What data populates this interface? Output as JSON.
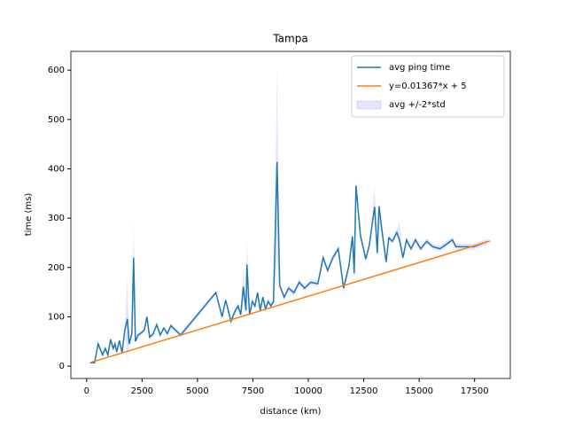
{
  "chart_data": {
    "type": "line",
    "title": "Tampa",
    "xlabel": "distance (km)",
    "ylabel": "time (ms)",
    "xlim": [
      -710,
      19110
    ],
    "ylim": [
      -25,
      638
    ],
    "xticks": [
      0,
      2500,
      5000,
      7500,
      10000,
      12500,
      15000,
      17500
    ],
    "yticks": [
      0,
      100,
      200,
      300,
      400,
      500,
      600
    ],
    "legend": "upper right",
    "series": [
      {
        "name": "avg ping time",
        "color": "#1f77b4",
        "x": [
          160,
          360,
          520,
          720,
          840,
          960,
          1080,
          1200,
          1280,
          1360,
          1480,
          1600,
          1720,
          1840,
          1920,
          2040,
          2120,
          2200,
          2320,
          2480,
          2600,
          2720,
          2840,
          3000,
          3160,
          3320,
          3480,
          3640,
          3800,
          3960,
          4240,
          5830,
          6110,
          6270,
          6510,
          6670,
          6830,
          6950,
          7070,
          7190,
          7230,
          7350,
          7470,
          7590,
          7710,
          7830,
          7950,
          8070,
          8190,
          8310,
          8430,
          8590,
          8710,
          8910,
          9110,
          9350,
          9590,
          9830,
          10110,
          10430,
          10670,
          10870,
          11110,
          11350,
          11590,
          11830,
          11990,
          12070,
          12150,
          12350,
          12590,
          12750,
          12990,
          13110,
          13190,
          13350,
          13510,
          13630,
          13790,
          13990,
          14110,
          14270,
          14430,
          14630,
          14830,
          15070,
          15340,
          15620,
          15940,
          16220,
          16500,
          16660,
          17460,
          18100
        ],
        "values": [
          7,
          7,
          45,
          23,
          36,
          23,
          54,
          36,
          45,
          29,
          52,
          27,
          73,
          96,
          45,
          66,
          220,
          50,
          63,
          68,
          73,
          100,
          59,
          65,
          84,
          63,
          77,
          66,
          82,
          75,
          63,
          149,
          100,
          134,
          91,
          109,
          122,
          104,
          161,
          113,
          206,
          104,
          131,
          122,
          149,
          113,
          140,
          116,
          131,
          122,
          131,
          414,
          163,
          140,
          158,
          149,
          170,
          158,
          170,
          167,
          220,
          194,
          220,
          238,
          158,
          203,
          263,
          188,
          366,
          265,
          217,
          245,
          323,
          229,
          324,
          265,
          211,
          260,
          253,
          271,
          256,
          220,
          256,
          238,
          256,
          238,
          253,
          242,
          238,
          247,
          256,
          242,
          242,
          253
        ]
      },
      {
        "name": "y=0.01367*x + 5",
        "color": "#ff7f0e",
        "x": [
          240,
          18200
        ],
        "values": [
          8.28,
          253.79
        ]
      },
      {
        "name": "avg +/-2*std",
        "type": "band",
        "color": "#0000ff",
        "alpha": 0.1,
        "lower": [
          5,
          5,
          40,
          18,
          31,
          18,
          48,
          31,
          40,
          24,
          47,
          22,
          68,
          10,
          40,
          61,
          140,
          45,
          58,
          63,
          68,
          95,
          54,
          60,
          79,
          58,
          72,
          61,
          77,
          70,
          58,
          145,
          95,
          128,
          86,
          103,
          116,
          99,
          130,
          107,
          150,
          99,
          125,
          116,
          143,
          107,
          134,
          110,
          125,
          116,
          125,
          220,
          157,
          134,
          152,
          143,
          164,
          152,
          164,
          161,
          214,
          188,
          214,
          232,
          145,
          196,
          256,
          182,
          350,
          259,
          211,
          239,
          317,
          223,
          285,
          259,
          205,
          254,
          247,
          265,
          250,
          214,
          250,
          232,
          250,
          232,
          247,
          236,
          232,
          241,
          250,
          236,
          236,
          247
        ],
        "upper": [
          9,
          9,
          50,
          28,
          41,
          28,
          60,
          41,
          50,
          34,
          57,
          32,
          78,
          180,
          50,
          71,
          300,
          55,
          68,
          73,
          78,
          105,
          64,
          70,
          89,
          68,
          82,
          71,
          87,
          80,
          68,
          153,
          105,
          140,
          96,
          115,
          128,
          109,
          200,
          119,
          260,
          109,
          137,
          128,
          155,
          119,
          146,
          122,
          137,
          128,
          137,
          608,
          169,
          146,
          164,
          155,
          176,
          164,
          176,
          173,
          226,
          200,
          226,
          244,
          164,
          210,
          270,
          194,
          380,
          271,
          223,
          251,
          365,
          235,
          330,
          271,
          217,
          266,
          259,
          277,
          295,
          226,
          262,
          244,
          262,
          244,
          259,
          248,
          244,
          253,
          262,
          248,
          248,
          259
        ]
      }
    ]
  }
}
